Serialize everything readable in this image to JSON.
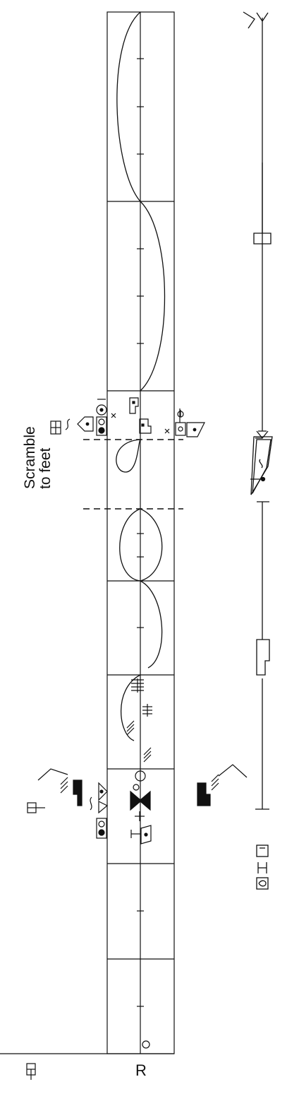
{
  "annotation": {
    "line1": "Scramble",
    "line2": "to feet"
  },
  "staff": {
    "center_label": "R"
  },
  "colors": {
    "ink": "#111111",
    "paper": "#ffffff"
  }
}
